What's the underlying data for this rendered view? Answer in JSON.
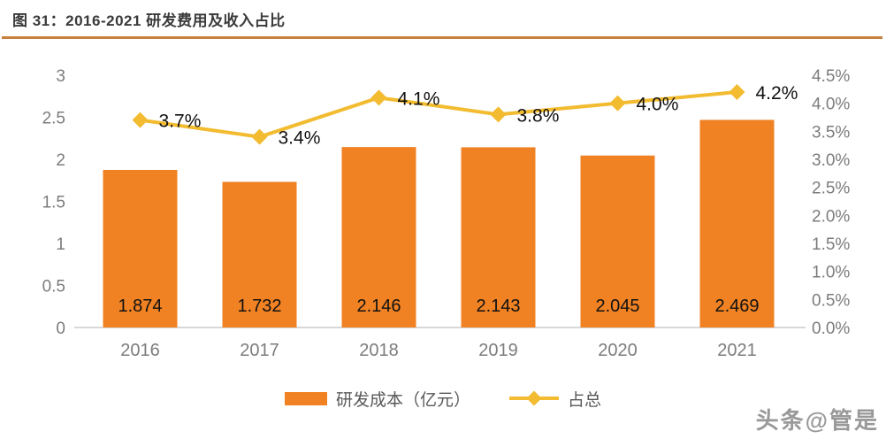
{
  "header": {
    "title": "图 31：2016-2021 研发费用及收入占比"
  },
  "chart_data": {
    "type": "combo-bar-line",
    "title": "图 31：2016-2021 研发费用及收入占比",
    "categories": [
      "2016",
      "2017",
      "2018",
      "2019",
      "2020",
      "2021"
    ],
    "series": [
      {
        "name": "研发成本（亿元）",
        "type": "bar",
        "axis": "left",
        "values": [
          1.874,
          1.732,
          2.146,
          2.143,
          2.045,
          2.469
        ],
        "data_labels": [
          "1.874",
          "1.732",
          "2.146",
          "2.143",
          "2.045",
          "2.469"
        ]
      },
      {
        "name": "占总",
        "type": "line",
        "axis": "right",
        "values": [
          3.7,
          3.4,
          4.1,
          3.8,
          4.0,
          4.2
        ],
        "data_labels": [
          "3.7%",
          "3.4%",
          "4.1%",
          "3.8%",
          "4.0%",
          "4.2%"
        ]
      }
    ],
    "left_axis": {
      "min": 0,
      "max": 3,
      "ticks": [
        "0",
        "0.5",
        "1",
        "1.5",
        "2",
        "2.5",
        "3"
      ]
    },
    "right_axis": {
      "min": 0,
      "max": 4.5,
      "ticks": [
        "0.0%",
        "0.5%",
        "1.0%",
        "1.5%",
        "2.0%",
        "2.5%",
        "3.0%",
        "3.5%",
        "4.0%",
        "4.5%"
      ]
    },
    "grid": false,
    "legend_position": "bottom"
  },
  "legend": {
    "bar_label": "研发成本（亿元）",
    "line_label": "占总"
  },
  "watermark": {
    "text": "头条@管是"
  },
  "colors": {
    "bar": "#F08223",
    "line": "#F2BB30",
    "title_text": "#3A3A3A",
    "title_rule": "#C9803E",
    "axis_text": "#7C7C7C",
    "data_label": "#111111",
    "baseline": "#D8D8D8",
    "legend_text": "#595959",
    "watermark": "#999999"
  }
}
